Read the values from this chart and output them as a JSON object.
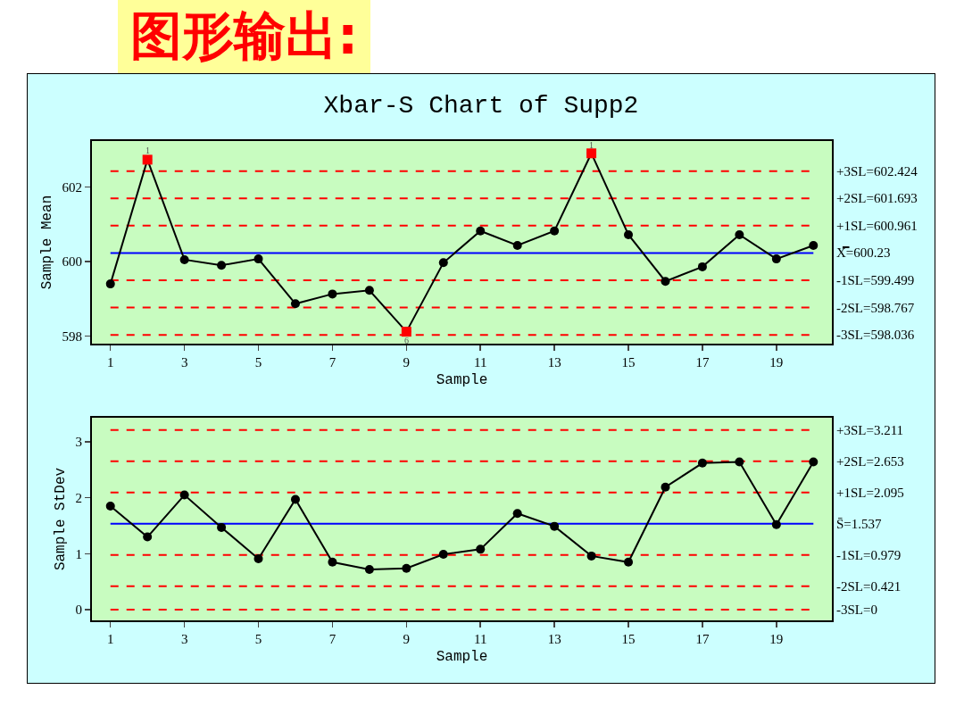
{
  "chart_data": [
    {
      "type": "line",
      "title": "Xbar-S Chart of Supp2",
      "xlabel": "Sample",
      "ylabel": "Sample Mean",
      "x": [
        1,
        2,
        3,
        4,
        5,
        6,
        7,
        8,
        9,
        10,
        11,
        12,
        13,
        14,
        15,
        16,
        17,
        18,
        19,
        20
      ],
      "series": [
        {
          "type": "line",
          "color": "#000000",
          "marker": "circle",
          "values": [
            599.4,
            602.73,
            600.05,
            599.9,
            600.07,
            598.87,
            599.13,
            599.23,
            598.12,
            599.97,
            600.82,
            600.43,
            600.82,
            602.9,
            600.72,
            599.47,
            599.86,
            600.72,
            600.07,
            600.43
          ]
        },
        {
          "type": "scatter",
          "color": "#ff0000",
          "marker": "square",
          "values": [
            null,
            602.73,
            null,
            null,
            null,
            null,
            null,
            null,
            598.12,
            null,
            null,
            null,
            null,
            602.9,
            null,
            null,
            null,
            null,
            null,
            null
          ]
        }
      ],
      "xlim": [
        0.5,
        20.5
      ],
      "xticks": [
        1,
        3,
        5,
        7,
        9,
        11,
        13,
        15,
        17,
        19
      ],
      "ylim": [
        597.8,
        603.23
      ],
      "yticks": [
        598,
        600,
        602
      ],
      "ref_lines": [
        {
          "axis": "y",
          "value": 602.424,
          "label": "+3SL=602.424",
          "color": "#ff0000",
          "line_style": "dashed"
        },
        {
          "axis": "y",
          "value": 601.693,
          "label": "+2SL=601.693",
          "color": "#ff0000",
          "line_style": "dashed"
        },
        {
          "axis": "y",
          "value": 600.961,
          "label": "+1SL=600.961",
          "color": "#ff0000",
          "line_style": "dashed"
        },
        {
          "axis": "y",
          "value": 600.23,
          "label": "X̿=600.23",
          "color": "#0000ff",
          "line_style": "solid"
        },
        {
          "axis": "y",
          "value": 599.499,
          "label": "-1SL=599.499",
          "color": "#ff0000",
          "line_style": "dashed"
        },
        {
          "axis": "y",
          "value": 598.767,
          "label": "-2SL=598.767",
          "color": "#ff0000",
          "line_style": "dashed"
        },
        {
          "axis": "y",
          "value": 598.036,
          "label": "-3SL=598.036",
          "color": "#ff0000",
          "line_style": "dashed"
        }
      ],
      "annotations": [
        "图形输出:",
        {
          "text": "1",
          "x": 2,
          "y": 602.98
        },
        {
          "text": "6",
          "x": 9,
          "y": 597.88
        },
        {
          "text": "1",
          "x": 14,
          "y": 603.13
        }
      ],
      "line_style": "solid"
    },
    {
      "type": "line",
      "xlabel": "Sample",
      "ylabel": "Sample StDev",
      "x": [
        1,
        2,
        3,
        4,
        5,
        6,
        7,
        8,
        9,
        10,
        11,
        12,
        13,
        14,
        15,
        16,
        17,
        18,
        19,
        20
      ],
      "series": [
        {
          "type": "line",
          "color": "#000000",
          "marker": "circle",
          "values": [
            1.85,
            1.3,
            2.05,
            1.47,
            0.91,
            1.97,
            0.85,
            0.72,
            0.74,
            0.99,
            1.08,
            1.72,
            1.49,
            0.96,
            0.85,
            2.19,
            2.62,
            2.64,
            1.52,
            2.64
          ]
        }
      ],
      "xlim": [
        0.5,
        20.5
      ],
      "xticks": [
        1,
        3,
        5,
        7,
        9,
        11,
        13,
        15,
        17,
        19
      ],
      "ylim": [
        -0.19,
        3.43
      ],
      "yticks": [
        0,
        1,
        2,
        3
      ],
      "ref_lines": [
        {
          "axis": "y",
          "value": 3.211,
          "label": "+3SL=3.211",
          "color": "#ff0000",
          "line_style": "dashed"
        },
        {
          "axis": "y",
          "value": 2.653,
          "label": "+2SL=2.653",
          "color": "#ff0000",
          "line_style": "dashed"
        },
        {
          "axis": "y",
          "value": 2.095,
          "label": "+1SL=2.095",
          "color": "#ff0000",
          "line_style": "dashed"
        },
        {
          "axis": "y",
          "value": 1.537,
          "label": "S̄=1.537",
          "color": "#0000ff",
          "line_style": "solid"
        },
        {
          "axis": "y",
          "value": 0.979,
          "label": "-1SL=0.979",
          "color": "#ff0000",
          "line_style": "dashed"
        },
        {
          "axis": "y",
          "value": 0.421,
          "label": "-2SL=0.421",
          "color": "#ff0000",
          "line_style": "dashed"
        },
        {
          "axis": "y",
          "value": 0,
          "label": "-3SL=0",
          "color": "#ff0000",
          "line_style": "dashed"
        }
      ],
      "line_style": "solid"
    }
  ]
}
